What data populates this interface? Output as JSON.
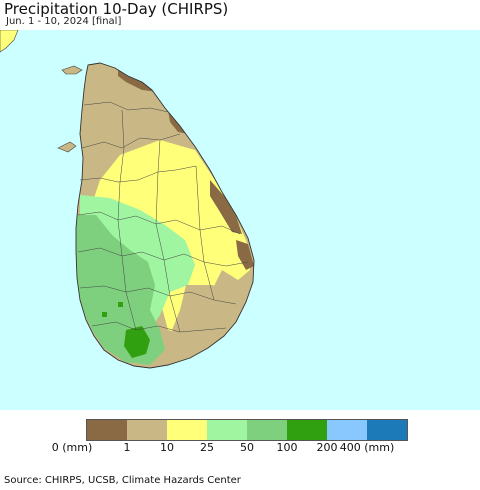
{
  "header": {
    "title": "Precipitation 10-Day (CHIRPS)",
    "subtitle": "Jun. 1 - 10, 2024 [final]"
  },
  "colors": {
    "ocean": "#ccffff",
    "boundary": "#444444",
    "brown_dark": "#8a6a45",
    "tan": "#c9b885",
    "yellow": "#ffff7a",
    "light_green": "#a0f5a0",
    "medium_green": "#7ed07e",
    "green": "#30a010",
    "light_blue": "#88c8ff",
    "blue": "#1c7ab8"
  },
  "legend": {
    "swatches": [
      {
        "color": "#8a6a45"
      },
      {
        "color": "#c9b885"
      },
      {
        "color": "#ffff7a"
      },
      {
        "color": "#a0f5a0"
      },
      {
        "color": "#7ed07e"
      },
      {
        "color": "#30a010"
      },
      {
        "color": "#88c8ff"
      },
      {
        "color": "#1c7ab8"
      }
    ],
    "labels": [
      "0 (mm)",
      "1",
      "10",
      "25",
      "50",
      "100",
      "200",
      "400 (mm)"
    ]
  },
  "footer": {
    "source": "Source: CHIRPS, UCSB, Climate Hazards Center"
  }
}
